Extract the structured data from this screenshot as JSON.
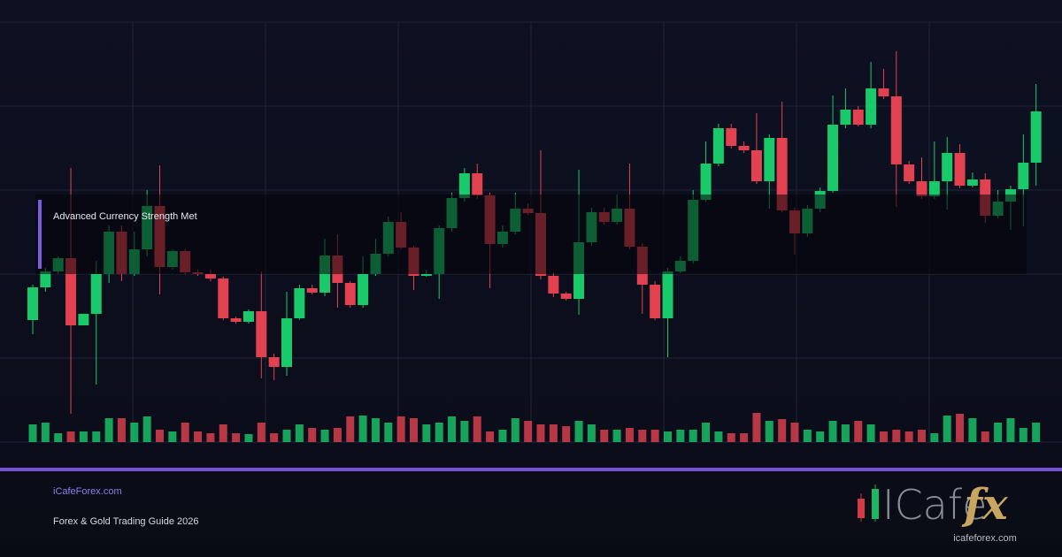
{
  "chart_data": {
    "type": "candlestick",
    "open": [
      138,
      175,
      193,
      208,
      132,
      145,
      190,
      238,
      190,
      218,
      267,
      198,
      216,
      192,
      190,
      185,
      140,
      136,
      148,
      96,
      85,
      140,
      174,
      169,
      211,
      180,
      155,
      190,
      213,
      249,
      220,
      188,
      190,
      242,
      276,
      304,
      279,
      224,
      238,
      264,
      259,
      188,
      168,
      162,
      226,
      260,
      249,
      264,
      221,
      178,
      140,
      193,
      205,
      274,
      315,
      355,
      335,
      330,
      295,
      344,
      262,
      236,
      264,
      284,
      359,
      376,
      359,
      400,
      391,
      314,
      295,
      278,
      295,
      327,
      290,
      297,
      256,
      272,
      286,
      316
    ],
    "high": [
      178,
      197,
      210,
      310,
      145,
      205,
      245,
      245,
      238,
      285,
      313,
      218,
      218,
      195,
      195,
      187,
      142,
      150,
      193,
      100,
      170,
      178,
      178,
      230,
      235,
      182,
      210,
      230,
      255,
      260,
      222,
      195,
      245,
      282,
      310,
      315,
      282,
      245,
      282,
      270,
      330,
      192,
      170,
      308,
      265,
      265,
      280,
      315,
      225,
      182,
      197,
      210,
      285,
      340,
      360,
      360,
      340,
      372,
      348,
      385,
      265,
      268,
      288,
      392,
      400,
      380,
      430,
      422,
      442,
      318,
      322,
      340,
      345,
      337,
      305,
      304,
      285,
      290,
      348,
      405
    ],
    "low": [
      122,
      170,
      190,
      32,
      132,
      65,
      180,
      182,
      188,
      210,
      167,
      195,
      190,
      188,
      182,
      138,
      134,
      134,
      72,
      70,
      75,
      138,
      167,
      165,
      152,
      152,
      152,
      188,
      210,
      218,
      172,
      187,
      162,
      238,
      272,
      275,
      174,
      220,
      235,
      257,
      184,
      164,
      160,
      144,
      222,
      246,
      246,
      218,
      145,
      138,
      96,
      191,
      202,
      272,
      312,
      332,
      327,
      292,
      264,
      260,
      212,
      232,
      260,
      282,
      355,
      357,
      355,
      388,
      266,
      292,
      275,
      275,
      263,
      287,
      288,
      248,
      253,
      240,
      244,
      290
    ],
    "close": [
      175,
      193,
      208,
      132,
      145,
      190,
      238,
      190,
      218,
      267,
      198,
      216,
      192,
      190,
      185,
      140,
      136,
      148,
      96,
      85,
      140,
      174,
      169,
      211,
      180,
      155,
      190,
      213,
      249,
      220,
      188,
      190,
      242,
      276,
      304,
      279,
      224,
      238,
      264,
      259,
      188,
      168,
      162,
      226,
      260,
      249,
      264,
      221,
      178,
      140,
      193,
      205,
      274,
      315,
      355,
      335,
      330,
      295,
      344,
      262,
      236,
      264,
      284,
      359,
      376,
      359,
      400,
      391,
      314,
      295,
      278,
      295,
      327,
      290,
      297,
      256,
      272,
      286,
      316,
      374
    ],
    "volume": [
      20,
      22,
      10,
      12,
      12,
      12,
      27,
      27,
      22,
      29,
      14,
      12,
      22,
      12,
      10,
      20,
      10,
      9,
      22,
      10,
      14,
      20,
      16,
      14,
      16,
      29,
      30,
      27,
      22,
      29,
      27,
      20,
      22,
      29,
      24,
      29,
      12,
      14,
      27,
      24,
      20,
      20,
      18,
      24,
      20,
      14,
      14,
      16,
      14,
      14,
      12,
      14,
      14,
      22,
      12,
      10,
      10,
      33,
      24,
      26,
      22,
      14,
      12,
      24,
      20,
      24,
      20,
      12,
      14,
      12,
      14,
      10,
      30,
      32,
      27,
      12,
      22,
      27,
      16,
      22
    ],
    "up_color": "#19c96a",
    "down_color": "#e2424f",
    "ylim": [
      0,
      500
    ],
    "y2lim": [
      0,
      100
    ],
    "grid": true
  },
  "banner": {
    "label": "Advanced Currency Strength Met",
    "site": "iCafeForex.com",
    "subtitle": "Forex & Gold Trading Guide 2026",
    "logo_text": "ICafe",
    "logo_accent": "fx",
    "logo_url": "icafeforex.com"
  }
}
